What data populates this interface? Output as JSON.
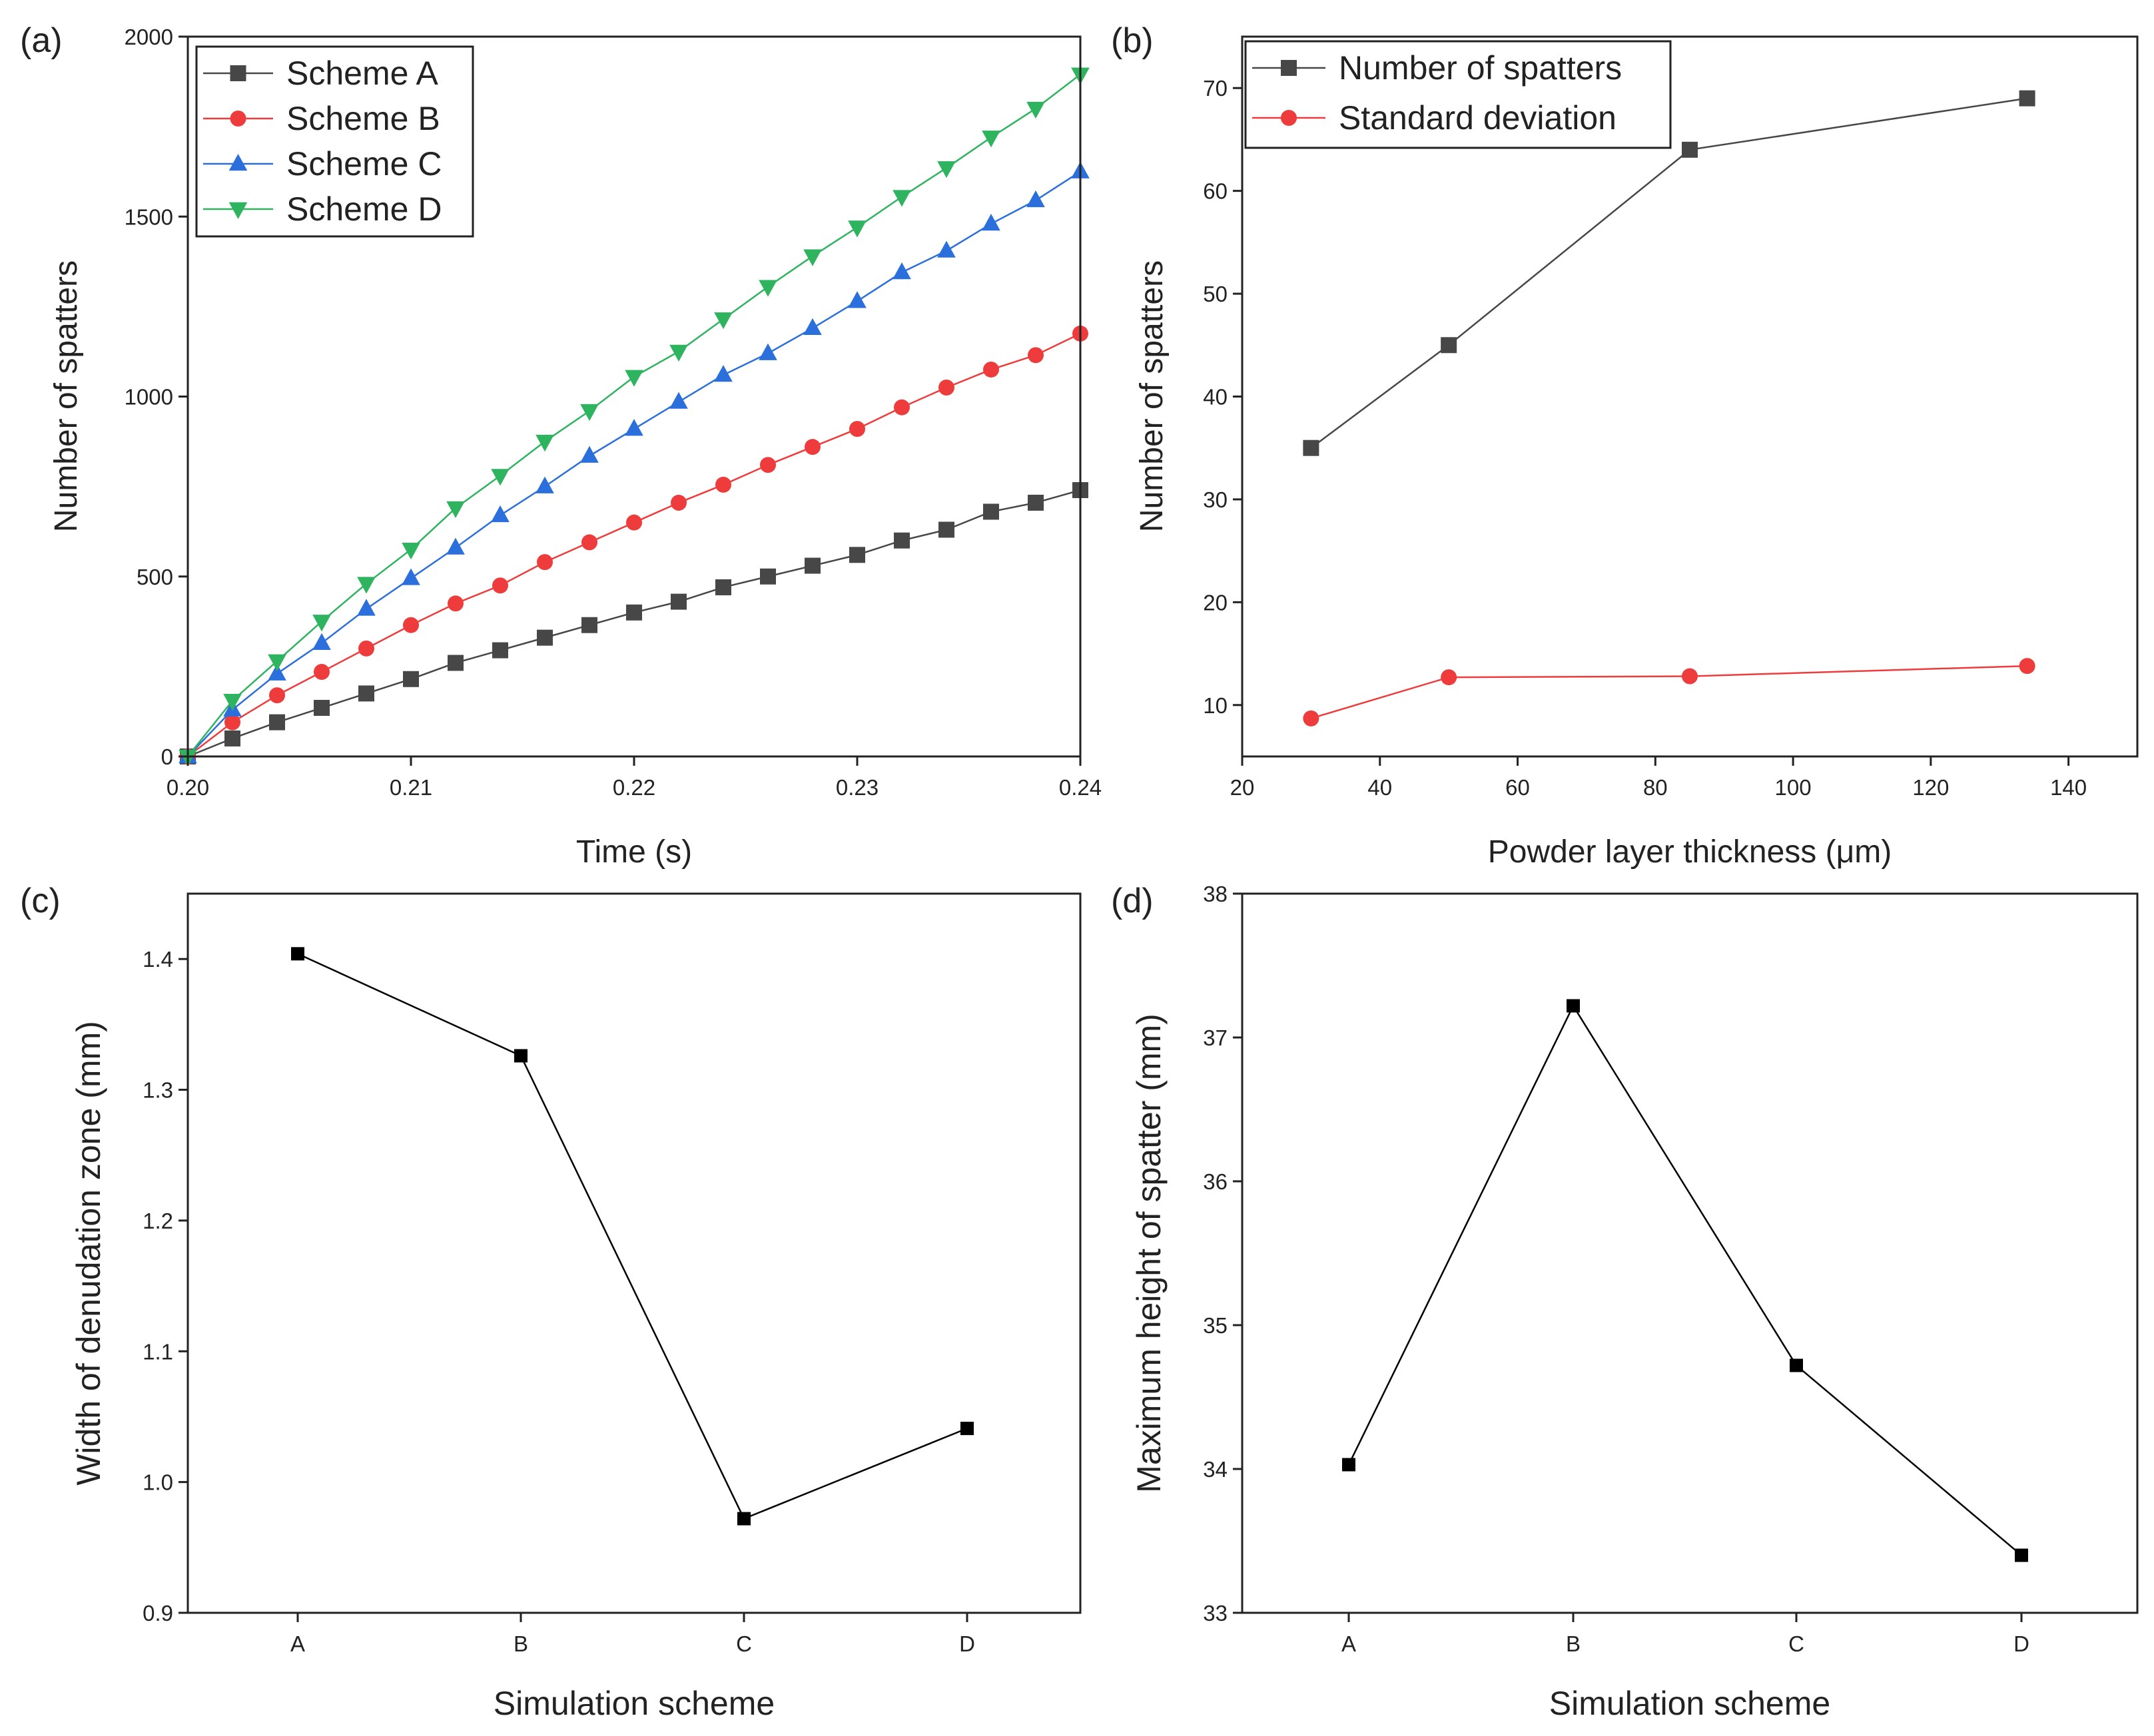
{
  "colors": {
    "scheme_a": "#474747",
    "scheme_b": "#ee3c3c",
    "scheme_c": "#2a6fdb",
    "scheme_d": "#2eb35f",
    "black": "#000000"
  },
  "chart_data": [
    {
      "id": "a",
      "panel_label": "(a)",
      "type": "line",
      "xlabel": "Time (s)",
      "ylabel": "Number of spatters",
      "xlim": [
        0.2,
        0.24
      ],
      "ylim": [
        0,
        2000
      ],
      "xticks": [
        "0.20",
        "0.21",
        "0.22",
        "0.23",
        "0.24"
      ],
      "yticks": [
        "0",
        "500",
        "1000",
        "1500",
        "2000"
      ],
      "legend_position": "top-left",
      "x": [
        0.2,
        0.202,
        0.204,
        0.206,
        0.208,
        0.21,
        0.212,
        0.214,
        0.216,
        0.218,
        0.22,
        0.222,
        0.224,
        0.226,
        0.228,
        0.23,
        0.232,
        0.234,
        0.236,
        0.238,
        0.24
      ],
      "series": [
        {
          "name": "Scheme A",
          "marker": "square",
          "color": "#474747",
          "values": [
            0,
            50,
            95,
            135,
            175,
            215,
            260,
            295,
            330,
            365,
            400,
            430,
            470,
            500,
            530,
            560,
            600,
            630,
            680,
            705,
            740
          ]
        },
        {
          "name": "Scheme B",
          "marker": "circle",
          "color": "#ee3c3c",
          "values": [
            0,
            95,
            170,
            235,
            300,
            365,
            425,
            475,
            540,
            595,
            650,
            705,
            755,
            810,
            860,
            910,
            970,
            1025,
            1075,
            1115,
            1175
          ]
        },
        {
          "name": "Scheme C",
          "marker": "triangle-up",
          "color": "#2a6fdb",
          "values": [
            0,
            130,
            230,
            315,
            410,
            495,
            580,
            670,
            750,
            835,
            910,
            985,
            1060,
            1120,
            1190,
            1265,
            1345,
            1405,
            1480,
            1545,
            1625
          ]
        },
        {
          "name": "Scheme D",
          "marker": "triangle-down",
          "color": "#2eb35f",
          "values": [
            0,
            155,
            265,
            375,
            480,
            575,
            690,
            780,
            875,
            960,
            1055,
            1125,
            1215,
            1305,
            1390,
            1470,
            1555,
            1635,
            1720,
            1800,
            1895
          ]
        }
      ]
    },
    {
      "id": "b",
      "panel_label": "(b)",
      "type": "line",
      "xlabel": "Powder layer thickness (μm)",
      "ylabel": "Number of spatters",
      "xlim": [
        20,
        150
      ],
      "ylim": [
        5,
        75
      ],
      "xticks": [
        "20",
        "40",
        "60",
        "80",
        "100",
        "120",
        "140"
      ],
      "yticks": [
        "10",
        "20",
        "30",
        "40",
        "50",
        "60",
        "70"
      ],
      "legend_position": "top-left",
      "x": [
        30,
        50,
        85,
        134
      ],
      "series": [
        {
          "name": "Number of spatters",
          "marker": "square",
          "color": "#474747",
          "values": [
            35,
            45,
            64,
            69
          ]
        },
        {
          "name": "Standard deviation",
          "marker": "circle",
          "color": "#ee3c3c",
          "values": [
            8.7,
            12.7,
            12.8,
            13.8
          ]
        }
      ]
    },
    {
      "id": "c",
      "panel_label": "(c)",
      "type": "line",
      "xlabel": "Simulation scheme",
      "ylabel": "Width of denudation zone (mm)",
      "categories": [
        "A",
        "B",
        "C",
        "D"
      ],
      "ylim": [
        0.9,
        1.45
      ],
      "yticks": [
        "0.9",
        "1.0",
        "1.1",
        "1.2",
        "1.3",
        "1.4"
      ],
      "series": [
        {
          "name": "Width of denudation zone",
          "marker": "square",
          "color": "#000000",
          "values": [
            1.404,
            1.326,
            0.972,
            1.041
          ]
        }
      ]
    },
    {
      "id": "d",
      "panel_label": "(d)",
      "type": "line",
      "xlabel": "Simulation scheme",
      "ylabel": "Maximum height of spatter (mm)",
      "categories": [
        "A",
        "B",
        "C",
        "D"
      ],
      "ylim": [
        33,
        38
      ],
      "yticks": [
        "33",
        "34",
        "35",
        "36",
        "37",
        "38"
      ],
      "series": [
        {
          "name": "Maximum height of spatter",
          "marker": "square",
          "color": "#000000",
          "values": [
            34.03,
            37.22,
            34.72,
            33.4
          ]
        }
      ]
    }
  ]
}
